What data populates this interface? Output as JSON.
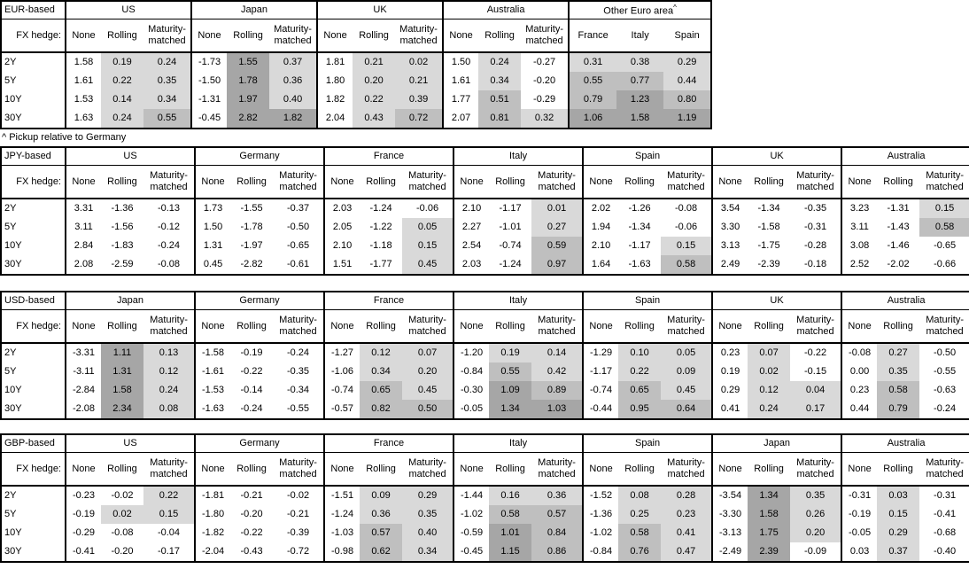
{
  "shading": {
    "light": "#d9d9d9",
    "medium": "#bfbfbf",
    "dark": "#a6a6a6",
    "medium_threshold": 0.5,
    "dark_threshold": 1.0,
    "rule": "Rolling and Maturity-matched cells (and all pickup cells) shaded by value: 0 to <0.5 light, 0.5 to <1.0 medium, >=1.0 dark, negative unshaded; None column unshaded"
  },
  "chart_data": [
    {
      "type": "table",
      "base_label": "EUR-based",
      "fx_hedge_label": "FX hedge:",
      "tenors": [
        "2Y",
        "5Y",
        "10Y",
        "30Y"
      ],
      "default_subcols": [
        "None",
        "Rolling",
        "Maturity-matched"
      ],
      "footnote": "^ Pickup relative to Germany",
      "groups": [
        {
          "name": "US",
          "rows": [
            [
              "1.58",
              "0.19",
              "0.24"
            ],
            [
              "1.61",
              "0.22",
              "0.35"
            ],
            [
              "1.53",
              "0.14",
              "0.34"
            ],
            [
              "1.63",
              "0.24",
              "0.55"
            ]
          ]
        },
        {
          "name": "Japan",
          "rows": [
            [
              "-1.73",
              "1.55",
              "0.37"
            ],
            [
              "-1.50",
              "1.78",
              "0.36"
            ],
            [
              "-1.31",
              "1.97",
              "0.40"
            ],
            [
              "-0.45",
              "2.82",
              "1.82"
            ]
          ]
        },
        {
          "name": "UK",
          "rows": [
            [
              "1.81",
              "0.21",
              "0.02"
            ],
            [
              "1.80",
              "0.20",
              "0.21"
            ],
            [
              "1.82",
              "0.22",
              "0.39"
            ],
            [
              "2.04",
              "0.43",
              "0.72"
            ]
          ]
        },
        {
          "name": "Australia",
          "rows": [
            [
              "1.50",
              "0.24",
              "-0.27"
            ],
            [
              "1.61",
              "0.34",
              "-0.20"
            ],
            [
              "1.77",
              "0.51",
              "-0.29"
            ],
            [
              "2.07",
              "0.81",
              "0.32"
            ]
          ]
        },
        {
          "name": "Other Euro area",
          "sup": "^",
          "shade_all": true,
          "subcols": [
            "France",
            "Italy",
            "Spain"
          ],
          "rows": [
            [
              "0.31",
              "0.38",
              "0.29"
            ],
            [
              "0.55",
              "0.77",
              "0.44"
            ],
            [
              "0.79",
              "1.23",
              "0.80"
            ],
            [
              "1.06",
              "1.58",
              "1.19"
            ]
          ]
        }
      ]
    },
    {
      "type": "table",
      "base_label": "JPY-based",
      "fx_hedge_label": "FX hedge:",
      "tenors": [
        "2Y",
        "5Y",
        "10Y",
        "30Y"
      ],
      "default_subcols": [
        "None",
        "Rolling",
        "Maturity-matched"
      ],
      "groups": [
        {
          "name": "US",
          "rows": [
            [
              "3.31",
              "-1.36",
              "-0.13"
            ],
            [
              "3.11",
              "-1.56",
              "-0.12"
            ],
            [
              "2.84",
              "-1.83",
              "-0.24"
            ],
            [
              "2.08",
              "-2.59",
              "-0.08"
            ]
          ]
        },
        {
          "name": "Germany",
          "rows": [
            [
              "1.73",
              "-1.55",
              "-0.37"
            ],
            [
              "1.50",
              "-1.78",
              "-0.50"
            ],
            [
              "1.31",
              "-1.97",
              "-0.65"
            ],
            [
              "0.45",
              "-2.82",
              "-0.61"
            ]
          ]
        },
        {
          "name": "France",
          "rows": [
            [
              "2.03",
              "-1.24",
              "-0.06"
            ],
            [
              "2.05",
              "-1.22",
              "0.05"
            ],
            [
              "2.10",
              "-1.18",
              "0.15"
            ],
            [
              "1.51",
              "-1.77",
              "0.45"
            ]
          ]
        },
        {
          "name": "Italy",
          "rows": [
            [
              "2.10",
              "-1.17",
              "0.01"
            ],
            [
              "2.27",
              "-1.01",
              "0.27"
            ],
            [
              "2.54",
              "-0.74",
              "0.59"
            ],
            [
              "2.03",
              "-1.24",
              "0.97"
            ]
          ]
        },
        {
          "name": "Spain",
          "rows": [
            [
              "2.02",
              "-1.26",
              "-0.08"
            ],
            [
              "1.94",
              "-1.34",
              "-0.06"
            ],
            [
              "2.10",
              "-1.17",
              "0.15"
            ],
            [
              "1.64",
              "-1.63",
              "0.58"
            ]
          ]
        },
        {
          "name": "UK",
          "rows": [
            [
              "3.54",
              "-1.34",
              "-0.35"
            ],
            [
              "3.30",
              "-1.58",
              "-0.31"
            ],
            [
              "3.13",
              "-1.75",
              "-0.28"
            ],
            [
              "2.49",
              "-2.39",
              "-0.18"
            ]
          ]
        },
        {
          "name": "Australia",
          "rows": [
            [
              "3.23",
              "-1.31",
              "0.15"
            ],
            [
              "3.11",
              "-1.43",
              "0.58"
            ],
            [
              "3.08",
              "-1.46",
              "-0.65"
            ],
            [
              "2.52",
              "-2.02",
              "-0.66"
            ]
          ]
        }
      ]
    },
    {
      "type": "table",
      "base_label": "USD-based",
      "fx_hedge_label": "FX hedge:",
      "tenors": [
        "2Y",
        "5Y",
        "10Y",
        "30Y"
      ],
      "default_subcols": [
        "None",
        "Rolling",
        "Maturity-matched"
      ],
      "groups": [
        {
          "name": "Japan",
          "rows": [
            [
              "-3.31",
              "1.11",
              "0.13"
            ],
            [
              "-3.11",
              "1.31",
              "0.12"
            ],
            [
              "-2.84",
              "1.58",
              "0.24"
            ],
            [
              "-2.08",
              "2.34",
              "0.08"
            ]
          ]
        },
        {
          "name": "Germany",
          "rows": [
            [
              "-1.58",
              "-0.19",
              "-0.24"
            ],
            [
              "-1.61",
              "-0.22",
              "-0.35"
            ],
            [
              "-1.53",
              "-0.14",
              "-0.34"
            ],
            [
              "-1.63",
              "-0.24",
              "-0.55"
            ]
          ]
        },
        {
          "name": "France",
          "rows": [
            [
              "-1.27",
              "0.12",
              "0.07"
            ],
            [
              "-1.06",
              "0.34",
              "0.20"
            ],
            [
              "-0.74",
              "0.65",
              "0.45"
            ],
            [
              "-0.57",
              "0.82",
              "0.50"
            ]
          ]
        },
        {
          "name": "Italy",
          "rows": [
            [
              "-1.20",
              "0.19",
              "0.14"
            ],
            [
              "-0.84",
              "0.55",
              "0.42"
            ],
            [
              "-0.30",
              "1.09",
              "0.89"
            ],
            [
              "-0.05",
              "1.34",
              "1.03"
            ]
          ]
        },
        {
          "name": "Spain",
          "rows": [
            [
              "-1.29",
              "0.10",
              "0.05"
            ],
            [
              "-1.17",
              "0.22",
              "0.09"
            ],
            [
              "-0.74",
              "0.65",
              "0.45"
            ],
            [
              "-0.44",
              "0.95",
              "0.64"
            ]
          ]
        },
        {
          "name": "UK",
          "rows": [
            [
              "0.23",
              "0.07",
              "-0.22"
            ],
            [
              "0.19",
              "0.02",
              "-0.15"
            ],
            [
              "0.29",
              "0.12",
              "0.04"
            ],
            [
              "0.41",
              "0.24",
              "0.17"
            ]
          ]
        },
        {
          "name": "Australia",
          "rows": [
            [
              "-0.08",
              "0.27",
              "-0.50"
            ],
            [
              "0.00",
              "0.35",
              "-0.55"
            ],
            [
              "0.23",
              "0.58",
              "-0.63"
            ],
            [
              "0.44",
              "0.79",
              "-0.24"
            ]
          ]
        }
      ]
    },
    {
      "type": "table",
      "base_label": "GBP-based",
      "fx_hedge_label": "FX hedge:",
      "tenors": [
        "2Y",
        "5Y",
        "10Y",
        "30Y"
      ],
      "default_subcols": [
        "None",
        "Rolling",
        "Maturity-matched"
      ],
      "groups": [
        {
          "name": "US",
          "rows": [
            [
              "-0.23",
              "-0.02",
              "0.22"
            ],
            [
              "-0.19",
              "0.02",
              "0.15"
            ],
            [
              "-0.29",
              "-0.08",
              "-0.04"
            ],
            [
              "-0.41",
              "-0.20",
              "-0.17"
            ]
          ]
        },
        {
          "name": "Germany",
          "rows": [
            [
              "-1.81",
              "-0.21",
              "-0.02"
            ],
            [
              "-1.80",
              "-0.20",
              "-0.21"
            ],
            [
              "-1.82",
              "-0.22",
              "-0.39"
            ],
            [
              "-2.04",
              "-0.43",
              "-0.72"
            ]
          ]
        },
        {
          "name": "France",
          "rows": [
            [
              "-1.51",
              "0.09",
              "0.29"
            ],
            [
              "-1.24",
              "0.36",
              "0.35"
            ],
            [
              "-1.03",
              "0.57",
              "0.40"
            ],
            [
              "-0.98",
              "0.62",
              "0.34"
            ]
          ]
        },
        {
          "name": "Italy",
          "rows": [
            [
              "-1.44",
              "0.16",
              "0.36"
            ],
            [
              "-1.02",
              "0.58",
              "0.57"
            ],
            [
              "-0.59",
              "1.01",
              "0.84"
            ],
            [
              "-0.45",
              "1.15",
              "0.86"
            ]
          ]
        },
        {
          "name": "Spain",
          "rows": [
            [
              "-1.52",
              "0.08",
              "0.28"
            ],
            [
              "-1.36",
              "0.25",
              "0.23"
            ],
            [
              "-1.02",
              "0.58",
              "0.41"
            ],
            [
              "-0.84",
              "0.76",
              "0.47"
            ]
          ]
        },
        {
          "name": "Japan",
          "rows": [
            [
              "-3.54",
              "1.34",
              "0.35"
            ],
            [
              "-3.30",
              "1.58",
              "0.26"
            ],
            [
              "-3.13",
              "1.75",
              "0.20"
            ],
            [
              "-2.49",
              "2.39",
              "-0.09"
            ]
          ]
        },
        {
          "name": "Australia",
          "rows": [
            [
              "-0.31",
              "0.03",
              "-0.31"
            ],
            [
              "-0.19",
              "0.15",
              "-0.41"
            ],
            [
              "-0.05",
              "0.29",
              "-0.68"
            ],
            [
              "0.03",
              "0.37",
              "-0.40"
            ]
          ]
        }
      ]
    }
  ]
}
